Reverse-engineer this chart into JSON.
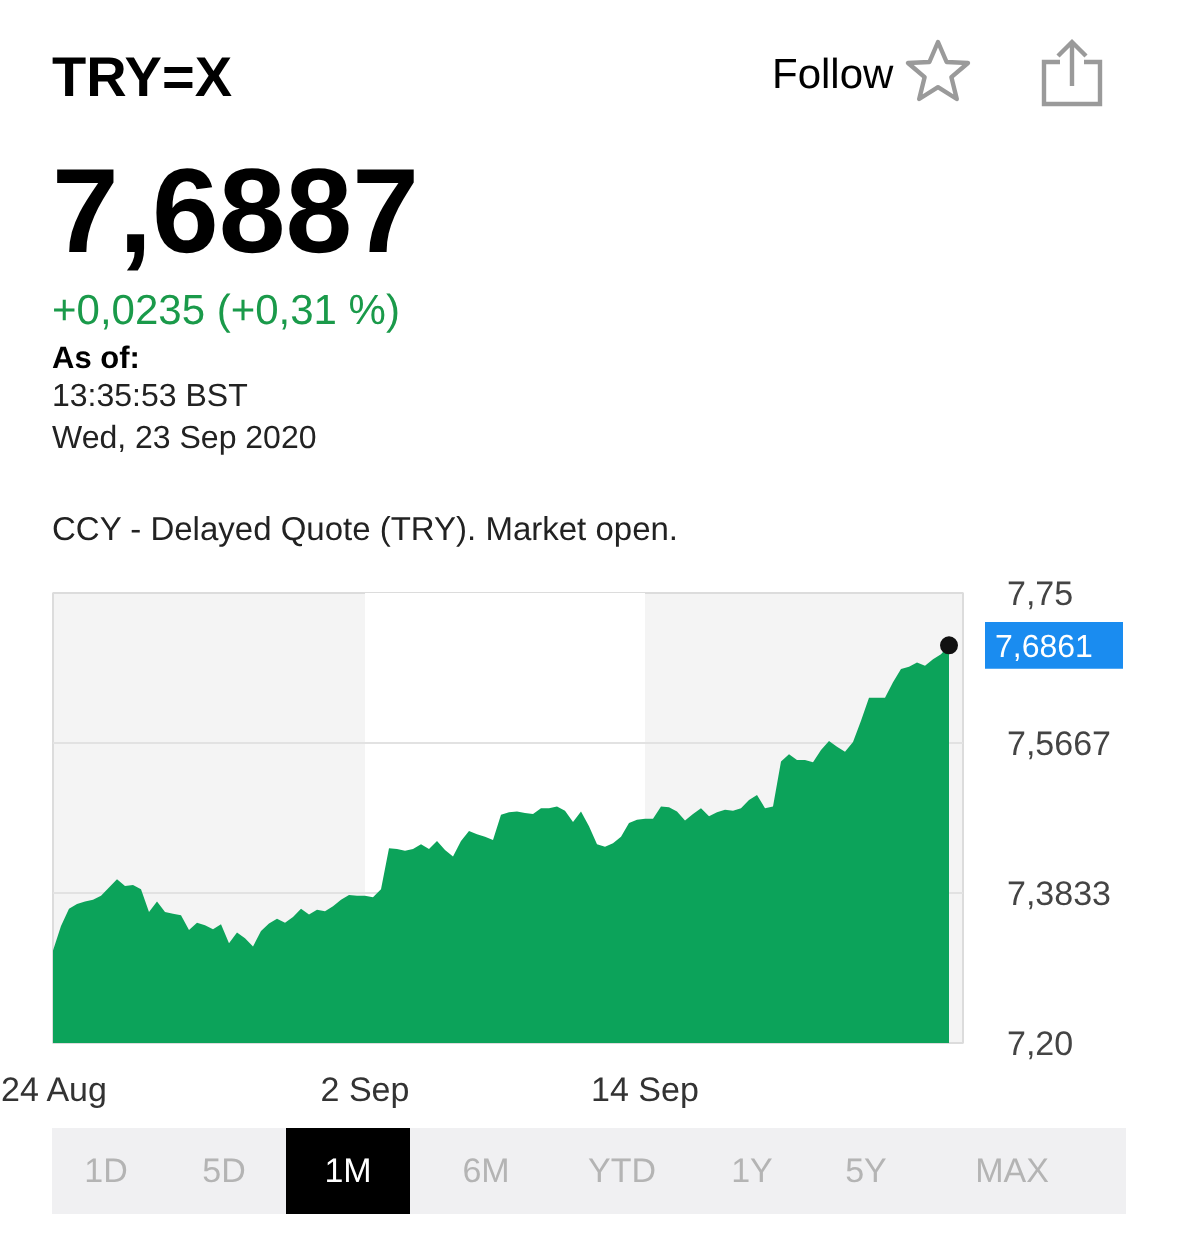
{
  "chart_data": {
    "type": "area",
    "title": "TRY=X",
    "categories": [
      "24 Aug",
      null,
      null,
      null,
      null,
      null,
      null,
      null,
      null,
      null,
      null,
      null,
      null,
      null,
      null,
      null,
      null,
      null,
      null,
      null,
      null,
      null,
      null,
      null,
      null,
      null,
      null,
      null,
      null,
      null,
      null,
      null,
      null,
      null,
      null,
      null,
      null,
      null,
      null,
      "2 Sep",
      null,
      null,
      null,
      null,
      null,
      null,
      null,
      null,
      null,
      null,
      null,
      null,
      null,
      null,
      null,
      null,
      null,
      null,
      null,
      null,
      null,
      null,
      null,
      null,
      null,
      null,
      null,
      null,
      null,
      null,
      null,
      null,
      null,
      null,
      "14 Sep",
      null,
      null,
      null,
      null,
      null,
      null,
      null,
      null,
      null,
      null,
      null,
      null,
      null,
      null,
      null,
      null,
      null,
      null,
      null,
      null,
      null,
      null,
      null,
      null,
      null,
      null,
      null,
      null,
      null,
      null,
      null,
      null,
      null,
      null,
      null,
      null,
      null,
      null
    ],
    "series": [
      {
        "color": "#0ca35a",
        "values": [
          7.313,
          7.343,
          7.364,
          7.37,
          7.373,
          7.375,
          7.38,
          7.39,
          7.4,
          7.392,
          7.393,
          7.388,
          7.36,
          7.373,
          7.36,
          7.358,
          7.356,
          7.338,
          7.347,
          7.344,
          7.339,
          7.345,
          7.322,
          7.335,
          7.328,
          7.318,
          7.337,
          7.346,
          7.352,
          7.347,
          7.354,
          7.364,
          7.357,
          7.363,
          7.361,
          7.367,
          7.375,
          7.381,
          7.38,
          7.38,
          7.378,
          7.388,
          7.438,
          7.437,
          7.435,
          7.437,
          7.443,
          7.437,
          7.447,
          7.436,
          7.428,
          7.447,
          7.459,
          7.455,
          7.452,
          7.448,
          7.479,
          7.482,
          7.483,
          7.481,
          7.48,
          7.487,
          7.487,
          7.489,
          7.484,
          7.47,
          7.483,
          7.465,
          7.443,
          7.44,
          7.444,
          7.452,
          7.469,
          7.473,
          7.474,
          7.474,
          7.489,
          7.488,
          7.483,
          7.472,
          7.48,
          7.487,
          7.477,
          7.482,
          7.485,
          7.484,
          7.487,
          7.497,
          7.503,
          7.487,
          7.489,
          7.544,
          7.553,
          7.546,
          7.546,
          7.543,
          7.558,
          7.569,
          7.562,
          7.556,
          7.568,
          7.594,
          7.622,
          7.622,
          7.622,
          7.641,
          7.657,
          7.66,
          7.665,
          7.661,
          7.669,
          7.675,
          7.6861
        ]
      }
    ],
    "ylim": [
      7.2,
      7.75
    ],
    "yticks": [
      {
        "value": 7.2,
        "label": "7,20"
      },
      {
        "value": 7.3833,
        "label": "7,3833"
      },
      {
        "value": 7.5667,
        "label": "7,5667"
      },
      {
        "value": 7.75,
        "label": "7,75"
      }
    ],
    "grid": "y",
    "bands": [
      {
        "axis": "x",
        "from": "2 Sep",
        "to": "14 Sep",
        "color": "#ffffff"
      }
    ],
    "annotations": [
      "7,6887",
      "+0,0235 (+0,31 %)",
      "As of:",
      "13:35:53 BST",
      "Wed, 23 Sep 2020",
      "CCY - Delayed Quote (TRY). Market open.",
      "Follow",
      "1D",
      "5D",
      "1M",
      "6M",
      "YTD",
      "1Y",
      "5Y",
      "MAX",
      "7,6861"
    ]
  }
}
